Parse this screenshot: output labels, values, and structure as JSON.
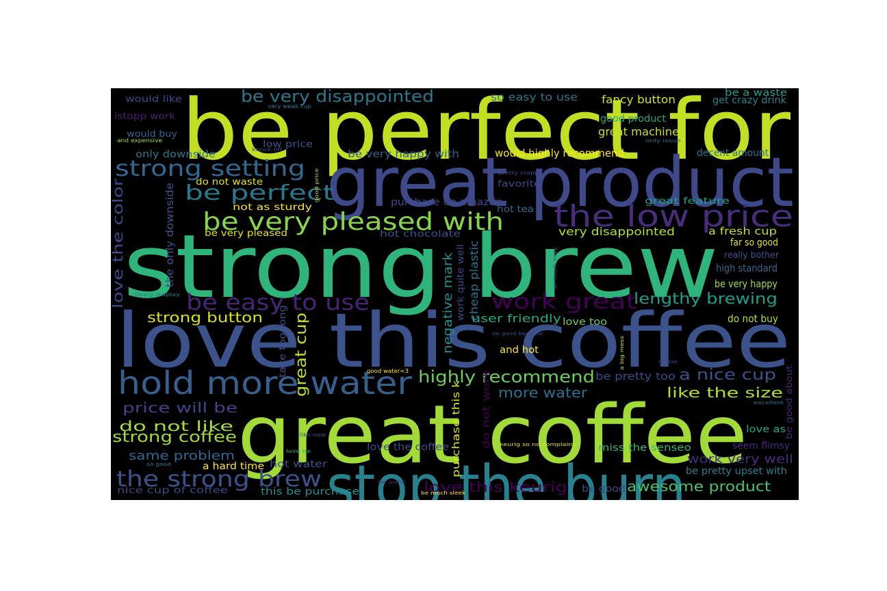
{
  "word_cloud": {
    "background": "#000000",
    "words": [
      {
        "text": "be perfect for",
        "color": "#c2df23"
      },
      {
        "text": "great product",
        "color": "#3e4989"
      },
      {
        "text": "strong brew",
        "color": "#2fb47c"
      },
      {
        "text": "love this coffee",
        "color": "#3b528b"
      },
      {
        "text": "great coffee",
        "color": "#a2da37"
      },
      {
        "text": "stop the burn",
        "color": "#26828e"
      },
      {
        "text": "hold more water",
        "color": "#355f8d"
      },
      {
        "text": "the low price",
        "color": "#472d7b"
      },
      {
        "text": "be very pleased with",
        "color": "#86d549"
      },
      {
        "text": "be very disappointed",
        "color": "#2a788e"
      },
      {
        "text": "strong setting",
        "color": "#31688e"
      },
      {
        "text": "be perfect",
        "color": "#2a788e"
      },
      {
        "text": "be easy to use",
        "color": "#482475"
      },
      {
        "text": "work great",
        "color": "#440154"
      },
      {
        "text": "lengthy brewing",
        "color": "#1f9e89"
      },
      {
        "text": "highly recommend",
        "color": "#6ccd5a"
      },
      {
        "text": "the strong brew",
        "color": "#3b528b"
      },
      {
        "text": "strong coffee",
        "color": "#a2da37"
      },
      {
        "text": "great cup",
        "color": "#bddf26"
      },
      {
        "text": "love the color",
        "color": "#3e4989"
      },
      {
        "text": "negative mark",
        "color": "#21918c"
      },
      {
        "text": "awesome product",
        "color": "#4ac16d"
      },
      {
        "text": "a nice cup",
        "color": "#3b528b"
      },
      {
        "text": "like the size",
        "color": "#b5de2b"
      },
      {
        "text": "strong button",
        "color": "#d8e219"
      },
      {
        "text": "price will be",
        "color": "#414487"
      },
      {
        "text": "do not like",
        "color": "#a5db36"
      },
      {
        "text": "same problem",
        "color": "#31688e"
      },
      {
        "text": "more water",
        "color": "#2c728e"
      },
      {
        "text": "love this keurig",
        "color": "#440154"
      },
      {
        "text": "work very well",
        "color": "#472d7b"
      },
      {
        "text": "fancy button",
        "color": "#d2e21b"
      },
      {
        "text": "great machine",
        "color": "#c8e020"
      },
      {
        "text": "would highly recommend",
        "color": "#fde725"
      },
      {
        "text": "cheap plastic",
        "color": "#2c728e"
      },
      {
        "text": "the only downside",
        "color": "#3b528b"
      },
      {
        "text": "so easy to use",
        "color": "#2a788e"
      },
      {
        "text": "be very happy with",
        "color": "#355f8d"
      },
      {
        "text": "very disappointed",
        "color": "#b5de2b"
      },
      {
        "text": "a fresh cup",
        "color": "#bddf26"
      },
      {
        "text": "far so good",
        "color": "#e5e419"
      },
      {
        "text": "high standard",
        "color": "#31688e"
      },
      {
        "text": "be very happy",
        "color": "#a8db34"
      },
      {
        "text": "user friendly",
        "color": "#25ac82"
      },
      {
        "text": "love too",
        "color": "#6ccd5a"
      },
      {
        "text": "do not buy",
        "color": "#b5de2b"
      },
      {
        "text": "take too long",
        "color": "#3b528b"
      },
      {
        "text": "and hot",
        "color": "#fde725"
      },
      {
        "text": "be pretty too",
        "color": "#3e4989"
      },
      {
        "text": "do not work",
        "color": "#440154"
      },
      {
        "text": "purchase this k",
        "color": "#dde318"
      },
      {
        "text": "love the coffee",
        "color": "#3e4989"
      },
      {
        "text": "miss the senseo",
        "color": "#35b779"
      },
      {
        "text": "seem flimsy",
        "color": "#482878"
      },
      {
        "text": "love as",
        "color": "#20a486"
      },
      {
        "text": "be good about",
        "color": "#482475"
      },
      {
        "text": "be pretty upset with",
        "color": "#26828e"
      },
      {
        "text": "be good",
        "color": "#3e4989"
      },
      {
        "text": "hot water",
        "color": "#3b528b"
      },
      {
        "text": "a hard time",
        "color": "#fde725"
      },
      {
        "text": "nice cup of coffee",
        "color": "#3e4989"
      },
      {
        "text": "this be purchase",
        "color": "#21918c"
      },
      {
        "text": "hot chocolate",
        "color": "#3b528b"
      },
      {
        "text": "purchase on amazon",
        "color": "#3e4989"
      },
      {
        "text": "hot tea",
        "color": "#31688e"
      },
      {
        "text": "favorite",
        "color": "#3e4989"
      },
      {
        "text": "great feature",
        "color": "#1f9e89"
      },
      {
        "text": "decent amount",
        "color": "#2c728e"
      },
      {
        "text": "good product",
        "color": "#25ac82"
      },
      {
        "text": "get crazy drink",
        "color": "#26828e"
      },
      {
        "text": "be a waste",
        "color": "#1f9e89"
      },
      {
        "text": "would like",
        "color": "#3e4989"
      },
      {
        "text": "istopp work",
        "color": "#481f70"
      },
      {
        "text": "would buy",
        "color": "#31688e"
      },
      {
        "text": "only downside",
        "color": "#2a788e"
      },
      {
        "text": "low price",
        "color": "#3b528b"
      },
      {
        "text": "do not waste",
        "color": "#e5e419"
      },
      {
        "text": "not as sturdy",
        "color": "#fde725"
      },
      {
        "text": "be very pleased",
        "color": "#e5e419"
      },
      {
        "text": "really bother",
        "color": "#3b528b"
      },
      {
        "text": "work quite well",
        "color": "#3e4989"
      },
      {
        "text": "very weak cup",
        "color": "#2a788e"
      },
      {
        "text": "and expensive",
        "color": "#a2da37"
      },
      {
        "text": "knock off",
        "color": "#3e4989"
      },
      {
        "text": "only issue",
        "color": "#2c728e"
      },
      {
        "text": "pretty crappy",
        "color": "#3e4989"
      },
      {
        "text": "good price",
        "color": "#c2df23"
      },
      {
        "text": "fancy display",
        "color": "#2a788e"
      },
      {
        "text": "so much easy",
        "color": "#3b528b"
      },
      {
        "text": "be good because",
        "color": "#3e4989"
      },
      {
        "text": "a big mess",
        "color": "#d8e219"
      },
      {
        "text": "no joke",
        "color": "#3e4989"
      },
      {
        "text": "good water<3",
        "color": "#fde725"
      },
      {
        "text": "excellent",
        "color": "#2c728e"
      },
      {
        "text": "like new",
        "color": "#3e4989"
      },
      {
        "text": "love be",
        "color": "#29af7f"
      },
      {
        "text": "keurig so no complaint",
        "color": "#e5e419"
      },
      {
        "text": "so good",
        "color": "#2a788e"
      },
      {
        "text": "be awful",
        "color": "#472d7b"
      },
      {
        "text": "be much sleek",
        "color": "#fde725"
      }
    ]
  }
}
